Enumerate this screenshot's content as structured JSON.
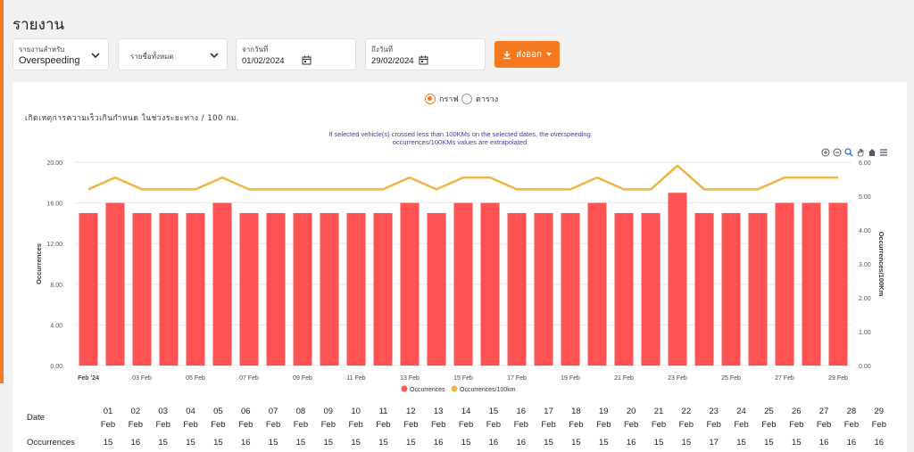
{
  "page": {
    "title": "รายงาน"
  },
  "filters": {
    "report_for_label": "รายงานสำหรับ",
    "report_for_value": "Overspeeding",
    "vehicles_label": "รายชื่อทั้งหมด",
    "from_label": "จากวันที่",
    "from_value": "01/02/2024",
    "to_label": "ถึงวันที่",
    "to_value": "29/02/2024",
    "export_label": "ส่งออก"
  },
  "view_toggle": {
    "graph_label": "กราฟ",
    "table_label": "ตาราง",
    "selected": "graph"
  },
  "chart_header": {
    "subtitle": "เกิดเหตุการความเร็วเกินกำหนด ในช่วงระยะทาง / 100 กม.",
    "note_line1": "If selected vehicle(s) crossed less than 100KMs on the selected dates, the overspeeding",
    "note_line2": "occurrences/100KMs values are extrapolated"
  },
  "colors": {
    "accent": "#f47a20",
    "bar": "#ff5252",
    "line": "#f0b440",
    "note": "#4a3b9c"
  },
  "icons": [
    "zoom-in-icon",
    "zoom-out-icon",
    "magnify-icon",
    "pan-hand-icon",
    "home-icon",
    "menu-icon"
  ],
  "chart_data": {
    "type": "bar+line",
    "ylabel": "Occurrences",
    "y2label": "Occurrences/100Km",
    "ylim": [
      0,
      20
    ],
    "y2lim": [
      0,
      6
    ],
    "yticks": [
      "0.00",
      "4.00",
      "8.00",
      "12.00",
      "16.00",
      "20.00"
    ],
    "y2ticks": [
      "0.00",
      "1.00",
      "2.00",
      "3.00",
      "4.00",
      "5.00",
      "6.00"
    ],
    "xtick_labels": [
      "Feb '24",
      "03 Feb",
      "05 Feb",
      "07 Feb",
      "09 Feb",
      "11 Feb",
      "13 Feb",
      "15 Feb",
      "17 Feb",
      "19 Feb",
      "21 Feb",
      "23 Feb",
      "25 Feb",
      "27 Feb",
      "29 Feb"
    ],
    "categories": [
      "01 Feb",
      "02 Feb",
      "03 Feb",
      "04 Feb",
      "05 Feb",
      "06 Feb",
      "07 Feb",
      "08 Feb",
      "09 Feb",
      "10 Feb",
      "11 Feb",
      "12 Feb",
      "13 Feb",
      "14 Feb",
      "15 Feb",
      "16 Feb",
      "17 Feb",
      "18 Feb",
      "19 Feb",
      "20 Feb",
      "21 Feb",
      "22 Feb",
      "23 Feb",
      "24 Feb",
      "25 Feb",
      "26 Feb",
      "27 Feb",
      "28 Feb",
      "29 Feb"
    ],
    "series": [
      {
        "name": "Occurrences",
        "axis": "left",
        "type": "bar",
        "values": [
          15,
          16,
          15,
          15,
          15,
          16,
          15,
          15,
          15,
          15,
          15,
          15,
          16,
          15,
          16,
          16,
          15,
          15,
          15,
          16,
          15,
          15,
          17,
          15,
          15,
          15,
          16,
          16,
          16
        ]
      },
      {
        "name": "Occurrences/100km",
        "axis": "right",
        "type": "line",
        "values": [
          5.2,
          5.55,
          5.2,
          5.2,
          5.2,
          5.55,
          5.2,
          5.2,
          5.2,
          5.2,
          5.2,
          5.2,
          5.55,
          5.2,
          5.55,
          5.55,
          5.2,
          5.2,
          5.2,
          5.55,
          5.2,
          5.2,
          5.9,
          5.2,
          5.2,
          5.2,
          5.55,
          5.55,
          5.55
        ]
      }
    ],
    "legend": [
      "Occurrences",
      "Occurrences/100km"
    ],
    "legend_position": "bottom"
  },
  "table": {
    "date_label": "Date",
    "occ_label": "Occurrences",
    "days": [
      "01",
      "02",
      "03",
      "04",
      "05",
      "06",
      "07",
      "08",
      "09",
      "10",
      "11",
      "12",
      "13",
      "14",
      "15",
      "16",
      "17",
      "18",
      "19",
      "20",
      "21",
      "22",
      "23",
      "24",
      "25",
      "26",
      "27",
      "28",
      "29"
    ],
    "month": "Feb",
    "occurrences": [
      "15",
      "16",
      "15",
      "15",
      "15",
      "16",
      "15",
      "15",
      "15",
      "15",
      "15",
      "15",
      "16",
      "15",
      "16",
      "16",
      "15",
      "15",
      "15",
      "16",
      "15",
      "15",
      "17",
      "15",
      "15",
      "15",
      "16",
      "16",
      "16"
    ]
  }
}
